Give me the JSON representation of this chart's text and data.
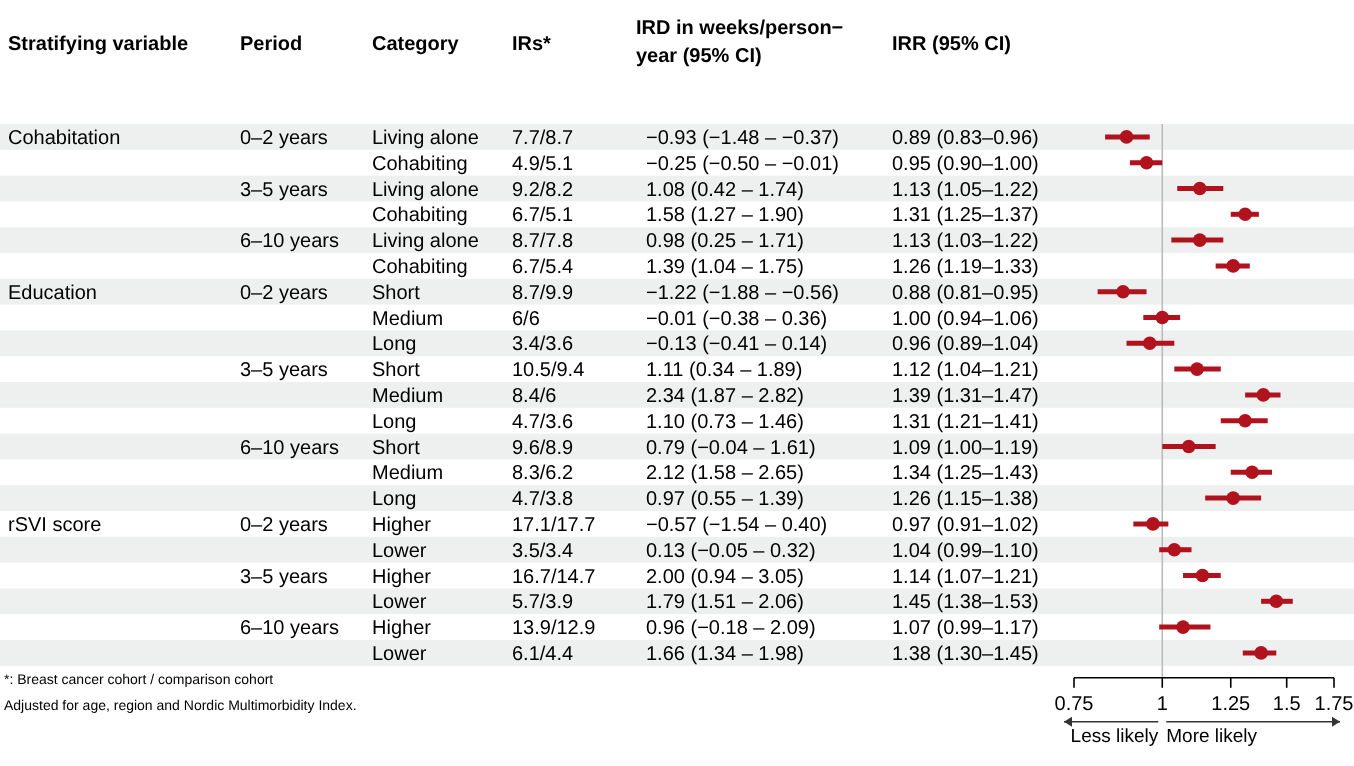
{
  "chart_data": [
    {
      "type": "other",
      "categories": [
        "Stratifying variable",
        "Period",
        "Category",
        "IRs*",
        "IRD in weeks/person−year (95% CI)",
        "IRR (95% CI)"
      ],
      "cell_labels": [
        [
          "Cohabitation",
          "0–2 years",
          "Living alone",
          "7.7/8.7",
          "−0.93 (−1.48 – −0.37)",
          "0.89 (0.83–0.96)"
        ],
        [
          null,
          null,
          "Cohabiting",
          "4.9/5.1",
          "−0.25 (−0.50 – −0.01)",
          "0.95 (0.90–1.00)"
        ],
        [
          null,
          "3–5 years",
          "Living alone",
          "9.2/8.2",
          "1.08 (0.42 – 1.74)",
          "1.13 (1.05–1.22)"
        ],
        [
          null,
          null,
          "Cohabiting",
          "6.7/5.1",
          "1.58 (1.27 – 1.90)",
          "1.31 (1.25–1.37)"
        ],
        [
          null,
          "6–10 years",
          "Living alone",
          "8.7/7.8",
          "0.98 (0.25 – 1.71)",
          "1.13 (1.03–1.22)"
        ],
        [
          null,
          null,
          "Cohabiting",
          "6.7/5.4",
          "1.39 (1.04 – 1.75)",
          "1.26 (1.19–1.33)"
        ],
        [
          "Education",
          "0–2 years",
          "Short",
          "8.7/9.9",
          "−1.22 (−1.88 – −0.56)",
          "0.88 (0.81–0.95)"
        ],
        [
          null,
          null,
          "Medium",
          "6/6",
          "−0.01 (−0.38 – 0.36)",
          "1.00 (0.94–1.06)"
        ],
        [
          null,
          null,
          "Long",
          "3.4/3.6",
          "−0.13 (−0.41 – 0.14)",
          "0.96 (0.89–1.04)"
        ],
        [
          null,
          "3–5 years",
          "Short",
          "10.5/9.4",
          "1.11 (0.34 – 1.89)",
          "1.12 (1.04–1.21)"
        ],
        [
          null,
          null,
          "Medium",
          "8.4/6",
          "2.34 (1.87 – 2.82)",
          "1.39 (1.31–1.47)"
        ],
        [
          null,
          null,
          "Long",
          "4.7/3.6",
          "1.10 (0.73 – 1.46)",
          "1.31 (1.21–1.41)"
        ],
        [
          null,
          "6–10 years",
          "Short",
          "9.6/8.9",
          "0.79 (−0.04 – 1.61)",
          "1.09 (1.00–1.19)"
        ],
        [
          null,
          null,
          "Medium",
          "8.3/6.2",
          "2.12 (1.58 – 2.65)",
          "1.34 (1.25–1.43)"
        ],
        [
          null,
          null,
          "Long",
          "4.7/3.8",
          "0.97 (0.55 – 1.39)",
          "1.26 (1.15–1.38)"
        ],
        [
          "rSVI score",
          "0–2 years",
          "Higher",
          "17.1/17.7",
          "−0.57 (−1.54 – 0.40)",
          "0.97 (0.91–1.02)"
        ],
        [
          null,
          null,
          "Lower",
          "3.5/3.4",
          "0.13 (−0.05 – 0.32)",
          "1.04 (0.99–1.10)"
        ],
        [
          null,
          "3–5 years",
          "Higher",
          "16.7/14.7",
          "2.00 (0.94 – 3.05)",
          "1.14 (1.07–1.21)"
        ],
        [
          null,
          null,
          "Lower",
          "5.7/3.9",
          "1.79 (1.51 – 2.06)",
          "1.45 (1.38–1.53)"
        ],
        [
          null,
          "6–10 years",
          "Higher",
          "13.9/12.9",
          "0.96 (−0.18 – 2.09)",
          "1.07 (0.99–1.17)"
        ],
        [
          null,
          null,
          "Lower",
          "6.1/4.4",
          "1.66 (1.34 – 1.98)",
          "1.38 (1.30–1.45)"
        ]
      ],
      "annotations": [
        "*: Breast cancer cohort / comparison cohort",
        "Adjusted for age, region and Nordic Multimorbidity Index."
      ]
    },
    {
      "type": "scatter",
      "orientation": "horizontal",
      "log": "x",
      "color": "#b0131e",
      "marker": "circle",
      "categories": [
        null,
        null,
        null,
        null,
        null,
        null,
        null,
        null,
        null,
        null,
        null,
        null,
        null,
        null,
        null,
        null,
        null,
        null,
        null,
        null,
        null
      ],
      "values": [
        0.89,
        0.95,
        1.13,
        1.31,
        1.13,
        1.26,
        0.88,
        1.0,
        0.96,
        1.12,
        1.39,
        1.31,
        1.09,
        1.34,
        1.26,
        0.97,
        1.04,
        1.14,
        1.45,
        1.07,
        1.38
      ],
      "errors": [
        [
          0.83,
          0.96
        ],
        [
          0.9,
          1.0
        ],
        [
          1.05,
          1.22
        ],
        [
          1.25,
          1.37
        ],
        [
          1.03,
          1.22
        ],
        [
          1.19,
          1.33
        ],
        [
          0.81,
          0.95
        ],
        [
          0.94,
          1.06
        ],
        [
          0.89,
          1.04
        ],
        [
          1.04,
          1.21
        ],
        [
          1.31,
          1.47
        ],
        [
          1.21,
          1.41
        ],
        [
          1.0,
          1.19
        ],
        [
          1.25,
          1.43
        ],
        [
          1.15,
          1.38
        ],
        [
          0.91,
          1.02
        ],
        [
          0.99,
          1.1
        ],
        [
          1.07,
          1.21
        ],
        [
          1.38,
          1.53
        ],
        [
          0.99,
          1.17
        ],
        [
          1.3,
          1.45
        ]
      ],
      "xlim": [
        0.75,
        1.75
      ],
      "xticks": [
        0.75,
        1,
        1.25,
        1.5,
        1.75
      ],
      "ref_lines": [
        {
          "axis": "x",
          "value": 1,
          "color": "#bbbbbb"
        }
      ],
      "annotations": [
        "Less likely",
        "More likely"
      ]
    }
  ]
}
